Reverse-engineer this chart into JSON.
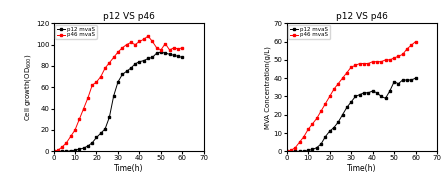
{
  "title": "p12 VS p46",
  "left": {
    "xlabel": "Time(h)",
    "xlim": [
      0,
      70
    ],
    "ylim": [
      0,
      120
    ],
    "xticks": [
      0,
      10,
      20,
      30,
      40,
      50,
      60,
      70
    ],
    "yticks": [
      0,
      20,
      40,
      60,
      80,
      100,
      120
    ],
    "p12_x": [
      0,
      2,
      4,
      6,
      8,
      10,
      12,
      14,
      16,
      18,
      20,
      22,
      24,
      26,
      28,
      30,
      32,
      34,
      36,
      38,
      40,
      42,
      44,
      46,
      48,
      50,
      52,
      54,
      56,
      58,
      60
    ],
    "p12_y": [
      0,
      0,
      0,
      0,
      0.5,
      1,
      2,
      3,
      5,
      8,
      13,
      17,
      21,
      32,
      52,
      65,
      72,
      75,
      78,
      82,
      84,
      85,
      87,
      88,
      92,
      93,
      92,
      91,
      90,
      89,
      88
    ],
    "p46_x": [
      0,
      2,
      4,
      6,
      8,
      10,
      12,
      14,
      16,
      18,
      20,
      22,
      24,
      26,
      28,
      30,
      32,
      34,
      36,
      38,
      40,
      42,
      44,
      46,
      48,
      50,
      52,
      54,
      56,
      58,
      60
    ],
    "p46_y": [
      0,
      1,
      4,
      8,
      14,
      20,
      30,
      40,
      50,
      62,
      65,
      70,
      78,
      83,
      88,
      93,
      97,
      100,
      102,
      100,
      103,
      105,
      108,
      103,
      97,
      95,
      101,
      95,
      97,
      96,
      97
    ],
    "p12_label": "p12 mvaS",
    "p46_label": "p46 mvaS",
    "p12_color": "black",
    "p46_color": "red"
  },
  "right": {
    "xlabel": "Time(h)",
    "xlim": [
      0,
      70
    ],
    "ylim": [
      0,
      70
    ],
    "xticks": [
      0,
      10,
      20,
      30,
      40,
      50,
      60,
      70
    ],
    "yticks": [
      0,
      10,
      20,
      30,
      40,
      50,
      60,
      70
    ],
    "p12_x": [
      0,
      2,
      4,
      6,
      8,
      10,
      12,
      14,
      16,
      18,
      20,
      22,
      24,
      26,
      28,
      30,
      32,
      34,
      36,
      38,
      40,
      42,
      44,
      46,
      48,
      50,
      52,
      54,
      56,
      58,
      60
    ],
    "p12_y": [
      0,
      0,
      0,
      0,
      0,
      0.5,
      1,
      2,
      4,
      8,
      11,
      13,
      16,
      20,
      24,
      27,
      30,
      31,
      32,
      32,
      33,
      32,
      30,
      29,
      33,
      38,
      37,
      39,
      39,
      39,
      40
    ],
    "p46_x": [
      0,
      2,
      4,
      6,
      8,
      10,
      12,
      14,
      16,
      18,
      20,
      22,
      24,
      26,
      28,
      30,
      32,
      34,
      36,
      38,
      40,
      42,
      44,
      46,
      48,
      50,
      52,
      54,
      56,
      58,
      60
    ],
    "p46_y": [
      0,
      0.5,
      2,
      5,
      8,
      12,
      15,
      18,
      22,
      26,
      30,
      34,
      37,
      40,
      43,
      46,
      47,
      48,
      48,
      48,
      49,
      49,
      49,
      50,
      50,
      51,
      52,
      53,
      56,
      58,
      60
    ],
    "p12_label": "p12 mvaS",
    "p46_label": "p46 mvaS",
    "p12_color": "black",
    "p46_color": "red"
  }
}
